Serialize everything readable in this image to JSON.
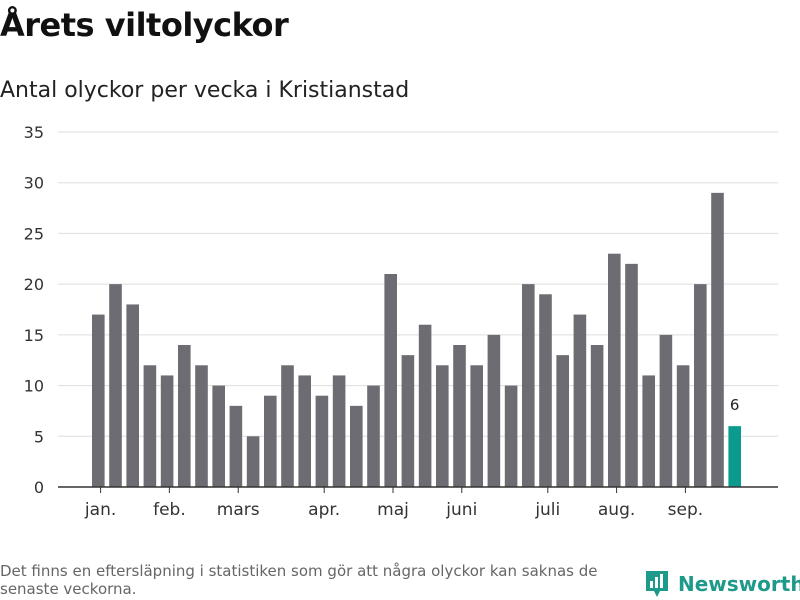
{
  "header": {
    "title": "Årets viltolyckor",
    "subtitle": "Antal olyckor per vecka i Kristianstad"
  },
  "footer": {
    "note": "Det finns en eftersläpning i statistiken som gör att några olyckor kan saknas de senaste veckorna.",
    "brand": "Newsworthy",
    "brand_icon": "bar-chart-logo-icon"
  },
  "colors": {
    "bar": "#6d6c72",
    "highlight": "#0a9b8e",
    "grid": "#dddddd",
    "axis": "#333333",
    "brand": "#1e9a8a"
  },
  "chart_data": {
    "type": "bar",
    "title": "Antal olyckor per vecka i Kristianstad",
    "xlabel": "",
    "ylabel": "",
    "ylim": [
      0,
      35
    ],
    "yticks": [
      0,
      5,
      10,
      15,
      20,
      25,
      30,
      35
    ],
    "grid": true,
    "values": [
      17,
      20,
      18,
      12,
      11,
      14,
      12,
      10,
      8,
      5,
      9,
      12,
      11,
      9,
      11,
      8,
      10,
      21,
      13,
      16,
      12,
      14,
      12,
      15,
      10,
      20,
      19,
      13,
      17,
      14,
      23,
      22,
      11,
      15,
      12,
      20,
      29,
      6
    ],
    "highlight_index": 37,
    "highlight_label": "6",
    "month_labels": [
      {
        "label": "jan.",
        "week": 0.5
      },
      {
        "label": "feb.",
        "week": 4.5
      },
      {
        "label": "mars",
        "week": 8.5
      },
      {
        "label": "apr.",
        "week": 13.5
      },
      {
        "label": "maj",
        "week": 17.5
      },
      {
        "label": "juni",
        "week": 21.5
      },
      {
        "label": "juli",
        "week": 26.5
      },
      {
        "label": "aug.",
        "week": 30.5
      },
      {
        "label": "sep.",
        "week": 34.5
      }
    ]
  }
}
